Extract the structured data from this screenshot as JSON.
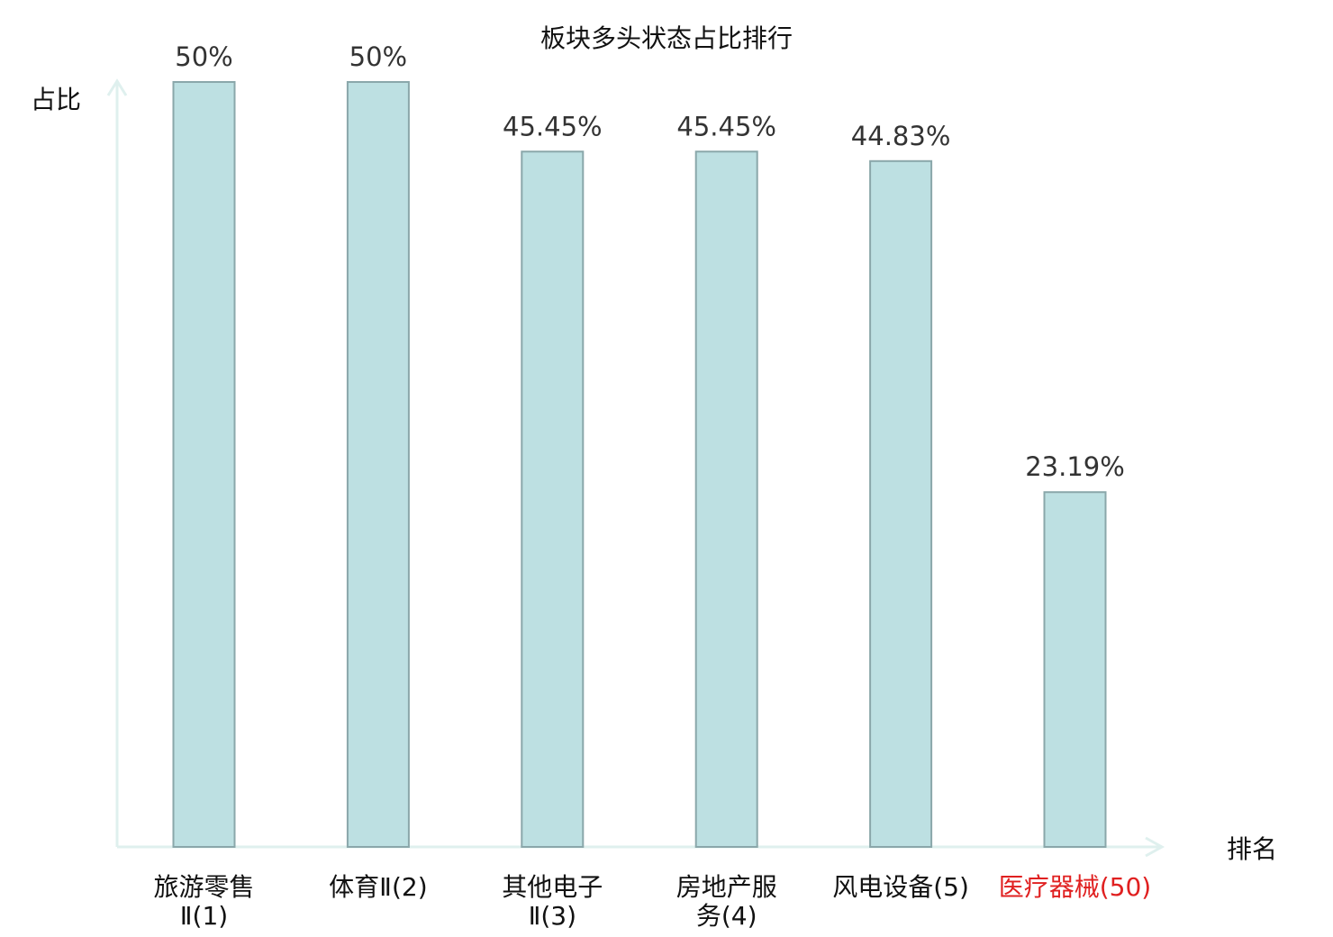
{
  "chart_data": {
    "type": "bar",
    "title": "板块多头状态占比排行",
    "ylabel": "占比",
    "xlabel": "排名",
    "ylim": [
      0,
      50
    ],
    "grid": false,
    "bar_color": "#bde0e2",
    "bar_edge_color": "#8aa7aa",
    "highlight_color": "#e02020",
    "categories": [
      {
        "lines": [
          "旅游零售",
          "Ⅱ(1)"
        ],
        "value": 50,
        "label": "50%",
        "highlight": false
      },
      {
        "lines": [
          "体育Ⅱ(2)"
        ],
        "value": 50,
        "label": "50%",
        "highlight": false
      },
      {
        "lines": [
          "其他电子",
          "Ⅱ(3)"
        ],
        "value": 45.45,
        "label": "45.45%",
        "highlight": false
      },
      {
        "lines": [
          "房地产服",
          "务(4)"
        ],
        "value": 45.45,
        "label": "45.45%",
        "highlight": false
      },
      {
        "lines": [
          "风电设备(5)"
        ],
        "value": 44.83,
        "label": "44.83%",
        "highlight": false
      },
      {
        "lines": [
          "医疗器械(50)"
        ],
        "value": 23.19,
        "label": "23.19%",
        "highlight": true
      }
    ]
  }
}
